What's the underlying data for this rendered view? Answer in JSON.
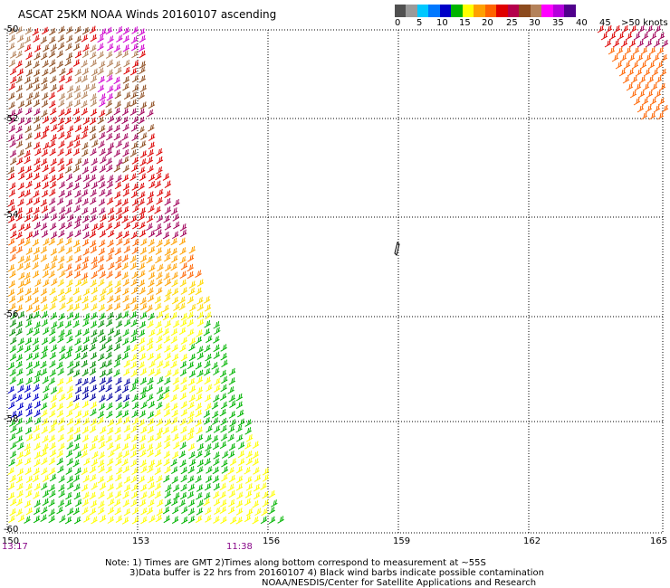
{
  "title": "ASCAT 25KM NOAA Winds 20160107 ascending",
  "colorbar": {
    "labels": [
      "0",
      "5",
      "10",
      "15",
      "20",
      "25",
      "30",
      "35",
      "40",
      "45",
      ">50 knots"
    ],
    "colors": [
      "#2b2b2b",
      "#9a9a9a",
      "#00c8ff",
      "#0064ff",
      "#0000c8",
      "#00b400",
      "#ffff00",
      "#ffa000",
      "#ff5a00",
      "#dc0000",
      "#a0005a",
      "#8c4b1e",
      "#b4825a",
      "#ff00ff",
      "#a000dc",
      "#3c0078"
    ]
  },
  "lat_labels": [
    "-50",
    "-52",
    "-54",
    "-56",
    "-58",
    "-60"
  ],
  "lon_labels": [
    "150",
    "153",
    "156",
    "159",
    "162",
    "165"
  ],
  "times": [
    "13:17",
    "11:38"
  ],
  "notes": [
    "Note: 1) Times are GMT 2)Times along bottom correspond to measurement at ~55S",
    "3)Data buffer is 22 hrs from 20160107 4) Black wind barbs indicate possible contamination",
    "NOAA/NESDIS/Center for Satellite Applications and Research"
  ]
}
